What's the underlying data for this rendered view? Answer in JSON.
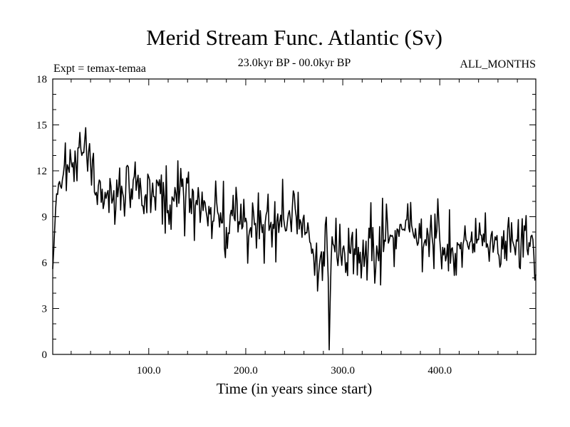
{
  "chart_data": {
    "type": "line",
    "title": "Merid Stream Func. Atlantic (Sv)",
    "subtitle": "23.0kyr BP - 00.0kyr BP",
    "left_label": "Expt = temax-temaa",
    "right_label": "ALL_MONTHS",
    "xlabel": "Time (in years since start)",
    "ylabel": "",
    "xlim": [
      1,
      499
    ],
    "ylim": [
      0,
      18
    ],
    "xticks": [
      100,
      200,
      300,
      400
    ],
    "xtick_labels": [
      "100.0",
      "200.0",
      "300.0",
      "400.0"
    ],
    "yticks": [
      0,
      3,
      6,
      9,
      12,
      15,
      18
    ],
    "ytick_labels": [
      "0",
      "3",
      "6",
      "9",
      "12",
      "15",
      "18"
    ],
    "grid": false,
    "series": [
      {
        "name": "Merid Stream Func. Atlantic",
        "x": [
          1,
          5,
          8,
          12,
          16,
          20,
          24,
          28,
          32,
          36,
          40,
          44,
          48,
          52,
          56,
          60,
          64,
          68,
          72,
          76,
          80,
          84,
          88,
          92,
          96,
          100,
          104,
          108,
          112,
          116,
          120,
          124,
          128,
          132,
          136,
          140,
          144,
          148,
          152,
          156,
          160,
          164,
          168,
          172,
          176,
          180,
          184,
          188,
          192,
          196,
          200,
          204,
          208,
          212,
          216,
          220,
          224,
          228,
          232,
          236,
          240,
          244,
          248,
          252,
          256,
          260,
          264,
          268,
          270,
          272,
          276,
          280,
          284,
          285,
          286,
          288,
          292,
          296,
          300,
          304,
          308,
          312,
          316,
          320,
          324,
          328,
          332,
          336,
          340,
          344,
          348,
          352,
          356,
          360,
          364,
          366,
          368,
          372,
          376,
          380,
          384,
          388,
          392,
          396,
          400,
          403,
          404,
          408,
          412,
          416,
          420,
          424,
          428,
          432,
          436,
          440,
          444,
          448,
          452,
          456,
          460,
          462,
          464,
          468,
          472,
          476,
          480,
          484,
          488,
          492,
          496,
          499
        ],
        "values": [
          5.6,
          10.5,
          11.3,
          11.8,
          12.4,
          12.6,
          13.3,
          13.5,
          13.2,
          13.0,
          12.5,
          10.6,
          11.0,
          10.8,
          10.2,
          11.5,
          10.7,
          10.3,
          11.0,
          10.2,
          10.6,
          11.4,
          11.3,
          10.8,
          10.3,
          11.6,
          11.2,
          11.4,
          10.5,
          10.3,
          9.4,
          10.3,
          10.5,
          10.7,
          10.3,
          11.2,
          9.2,
          9.7,
          10.1,
          9.4,
          9.0,
          9.6,
          9.6,
          9.1,
          8.6,
          8.3,
          9.1,
          8.9,
          8.0,
          8.2,
          8.9,
          8.1,
          9.3,
          8.5,
          8.5,
          8.6,
          8.1,
          8.5,
          8.7,
          9.1,
          8.4,
          9.2,
          9.6,
          9.0,
          8.8,
          9.1,
          8.6,
          6.6,
          6.4,
          6.3,
          5.9,
          6.7,
          6.8,
          5.0,
          0.3,
          6.1,
          6.7,
          6.6,
          6.9,
          6.0,
          6.6,
          6.9,
          7.0,
          6.1,
          7.4,
          7.6,
          6.6,
          6.6,
          7.3,
          7.4,
          7.5,
          7.6,
          8.2,
          8.5,
          8.1,
          8.8,
          8.3,
          8.1,
          7.5,
          7.6,
          7.3,
          7.8,
          7.7,
          7.6,
          7.5,
          7.0,
          6.5,
          7.2,
          6.9,
          6.6,
          7.2,
          7.2,
          7.4,
          7.4,
          6.7,
          7.5,
          7.1,
          7.0,
          7.2,
          7.1,
          6.6,
          5.7,
          7.7,
          7.4,
          7.7,
          7.2,
          7.4,
          7.5,
          8.1,
          7.3,
          7.5,
          5.2
        ]
      }
    ]
  }
}
